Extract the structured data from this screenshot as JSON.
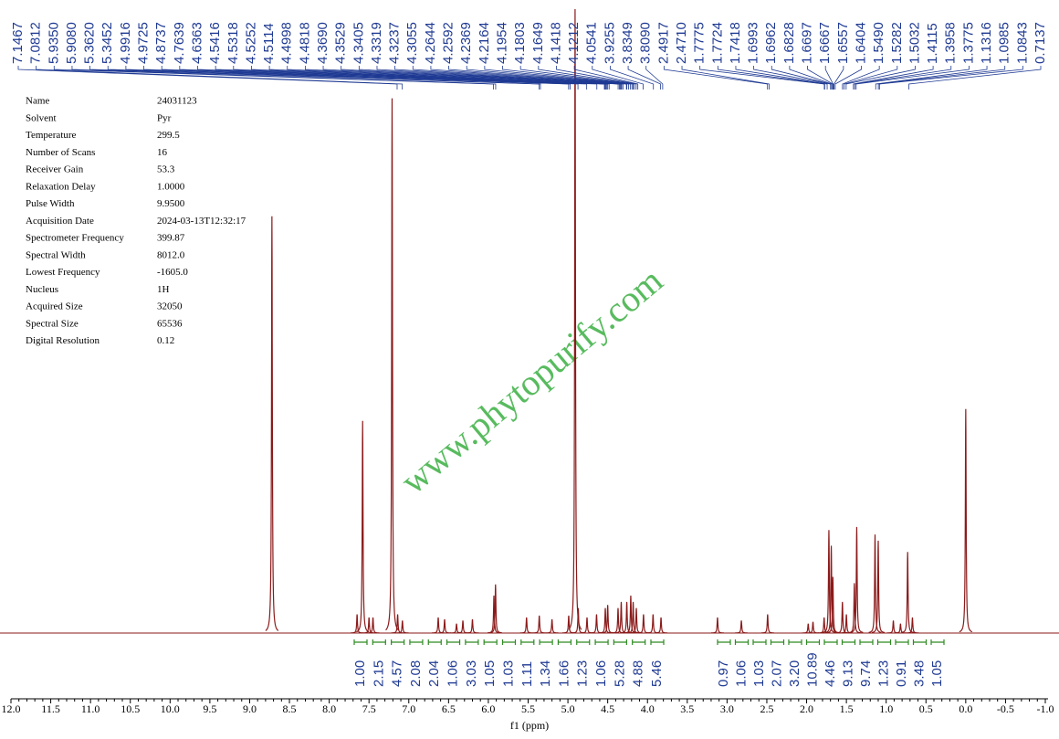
{
  "chart_data": {
    "type": "nmr",
    "x_label": "f1 (ppm)",
    "watermark": "www.phytopurify.com",
    "color": "#8b1a1a",
    "xlim": [
      12.0,
      -1.0
    ],
    "ylim": [
      0,
      100
    ],
    "xticks": [
      {
        "value": 12,
        "label": "12.0"
      },
      11.5,
      {
        "value": 11,
        "label": "11.0"
      },
      10.5,
      {
        "value": 10,
        "label": "10.0"
      },
      9.5,
      {
        "value": 9,
        "label": "9.0"
      },
      8.5,
      {
        "value": 8,
        "label": "8.0"
      },
      7.5,
      {
        "value": 7,
        "label": "7.0"
      },
      6.5,
      {
        "value": 6,
        "label": "6.0"
      },
      5.5,
      {
        "value": 5,
        "label": "5.0"
      },
      4.5,
      {
        "value": 4,
        "label": "4.0"
      },
      3.5,
      {
        "value": 3,
        "label": "3.0"
      },
      2.5,
      {
        "value": 2,
        "label": "2.0"
      },
      1.5,
      {
        "value": 1,
        "label": "1.0"
      },
      0.5,
      {
        "value": 0,
        "label": "0.0"
      },
      -0.5,
      {
        "value": -1,
        "label": "-1.0"
      }
    ],
    "x": [
      8.72,
      7.65,
      7.58,
      7.5,
      7.45,
      7.21,
      7.14,
      7.08,
      6.63,
      6.55,
      6.4,
      6.32,
      6.2,
      5.93,
      5.91,
      5.52,
      5.36,
      5.2,
      4.99,
      4.91,
      4.87,
      4.76,
      4.64,
      4.53,
      4.5,
      4.37,
      4.33,
      4.26,
      4.21,
      4.18,
      4.14,
      4.05,
      3.93,
      3.83,
      3.12,
      2.82,
      2.49,
      1.98,
      1.92,
      1.78,
      1.72,
      1.69,
      1.67,
      1.55,
      1.5,
      1.4,
      1.37,
      1.14,
      1.1,
      0.91,
      0.82,
      0.73,
      0.67,
      0.0
    ],
    "values": [
      66.8,
      3,
      34,
      2.5,
      2.5,
      85.7,
      3,
      2,
      2.5,
      2.2,
      1.5,
      2,
      2.2,
      6,
      7.8,
      2.5,
      2.8,
      2.2,
      2.8,
      100,
      4,
      2.5,
      3,
      4,
      4.5,
      4,
      5,
      5,
      6,
      5,
      4,
      3,
      3,
      2.5,
      2.5,
      2,
      3,
      1.5,
      1.8,
      2.5,
      16.5,
      14,
      9,
      5,
      3,
      8,
      17,
      15.8,
      14.8,
      2,
      1.5,
      13,
      2.5,
      35.9
    ],
    "peak_labels": [
      "7.1467",
      "7.0812",
      "5.9350",
      "5.9080",
      "5.3620",
      "5.3452",
      "4.9916",
      "4.9725",
      "4.8737",
      "4.7639",
      "4.6363",
      "4.5416",
      "4.5318",
      "4.5252",
      "4.5114",
      "4.4998",
      "4.4818",
      "4.3690",
      "4.3529",
      "4.3405",
      "4.3319",
      "4.3237",
      "4.3055",
      "4.2644",
      "4.2592",
      "4.2369",
      "4.2164",
      "4.1954",
      "4.1803",
      "4.1649",
      "4.1418",
      "4.1212",
      "4.0541",
      "3.9255",
      "3.8349",
      "3.8090",
      "2.4917",
      "2.4710",
      "1.7775",
      "1.7724",
      "1.7418",
      "1.6993",
      "1.6962",
      "1.6828",
      "1.6697",
      "1.6667",
      "1.6557",
      "1.6404",
      "1.5490",
      "1.5282",
      "1.5032",
      "1.4115",
      "1.3958",
      "1.3775",
      "1.1316",
      "1.0985",
      "1.0843",
      "0.7137"
    ],
    "integral_labels": [
      "1.00",
      "2.15",
      "4.57",
      "2.08",
      "2.04",
      "1.06",
      "3.03",
      "1.05",
      "1.03",
      "1.11",
      "1.34",
      "1.66",
      "1.23",
      "1.06",
      "5.28",
      "4.88",
      "5.46",
      "0.97",
      "1.06",
      "1.03",
      "2.07",
      "3.20",
      "10.89",
      "4.46",
      "9.13",
      "9.74",
      "1.23",
      "0.91",
      "3.48",
      "1.05"
    ],
    "parameters": [
      [
        "Name",
        "24031123"
      ],
      [
        "Solvent",
        "Pyr"
      ],
      [
        "Temperature",
        "299.5"
      ],
      [
        "Number of Scans",
        "16"
      ],
      [
        "Receiver Gain",
        "53.3"
      ],
      [
        "Relaxation Delay",
        "1.0000"
      ],
      [
        "Pulse Width",
        "9.9500"
      ],
      [
        "Acquisition Date",
        "2024-03-13T12:32:17"
      ],
      [
        "Spectrometer Frequency",
        "399.87"
      ],
      [
        "Spectral Width",
        "8012.0"
      ],
      [
        "Lowest Frequency",
        "-1605.0"
      ],
      [
        "Nucleus",
        "1H"
      ],
      [
        "Acquired Size",
        "32050"
      ],
      [
        "Spectral Size",
        "65536"
      ],
      [
        "Digital Resolution",
        "0.12"
      ]
    ]
  }
}
